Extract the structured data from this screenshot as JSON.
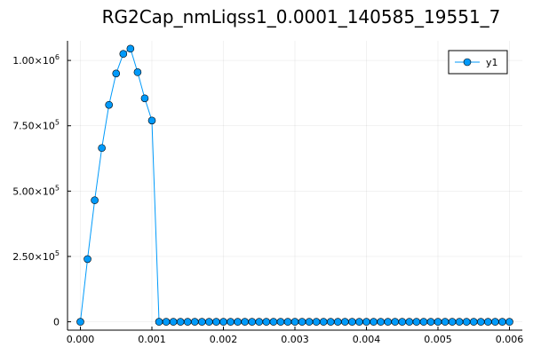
{
  "chart_data": {
    "type": "scatter",
    "title": "RG2Cap_nmLiqss1_0.0001_140585_19551_7",
    "xlabel": "",
    "ylabel": "",
    "grid": true,
    "legend_position": "top-right",
    "xlim": [
      -0.00018,
      0.00618
    ],
    "ylim": [
      -32000,
      1075000
    ],
    "x_ticks": [
      {
        "value": 0.0,
        "label": "0.000"
      },
      {
        "value": 0.001,
        "label": "0.001"
      },
      {
        "value": 0.002,
        "label": "0.002"
      },
      {
        "value": 0.003,
        "label": "0.003"
      },
      {
        "value": 0.004,
        "label": "0.004"
      },
      {
        "value": 0.005,
        "label": "0.005"
      },
      {
        "value": 0.006,
        "label": "0.006"
      }
    ],
    "y_ticks": [
      {
        "value": 0,
        "mantissa": "0",
        "exponent": ""
      },
      {
        "value": 250000,
        "mantissa": "2.50×10",
        "exponent": "5"
      },
      {
        "value": 500000,
        "mantissa": "5.00×10",
        "exponent": "5"
      },
      {
        "value": 750000,
        "mantissa": "7.50×10",
        "exponent": "5"
      },
      {
        "value": 1000000,
        "mantissa": "1.00×10",
        "exponent": "6"
      }
    ],
    "series": [
      {
        "name": "y1",
        "color": "#009AFA",
        "marker": "circle",
        "x": [
          0.0,
          0.0001,
          0.0002,
          0.0003,
          0.0004,
          0.0005,
          0.0006,
          0.0007,
          0.0008,
          0.0009,
          0.001,
          0.0011,
          0.0012,
          0.0013,
          0.0014,
          0.0015,
          0.0016,
          0.0017,
          0.0018,
          0.0019,
          0.002,
          0.0021,
          0.0022,
          0.0023,
          0.0024,
          0.0025,
          0.0026,
          0.0027,
          0.0028,
          0.0029,
          0.003,
          0.0031,
          0.0032,
          0.0033,
          0.0034,
          0.0035,
          0.0036,
          0.0037,
          0.0038,
          0.0039,
          0.004,
          0.0041,
          0.0042,
          0.0043,
          0.0044,
          0.0045,
          0.0046,
          0.0047,
          0.0048,
          0.0049,
          0.005,
          0.0051,
          0.0052,
          0.0053,
          0.0054,
          0.0055,
          0.0056,
          0.0057,
          0.0058,
          0.0059,
          0.006
        ],
        "y": [
          0,
          240000,
          465000,
          665000,
          830000,
          950000,
          1025000,
          1045000,
          955000,
          855000,
          770000,
          0,
          0,
          0,
          0,
          0,
          0,
          0,
          0,
          0,
          0,
          0,
          0,
          0,
          0,
          0,
          0,
          0,
          0,
          0,
          0,
          0,
          0,
          0,
          0,
          0,
          0,
          0,
          0,
          0,
          0,
          0,
          0,
          0,
          0,
          0,
          0,
          0,
          0,
          0,
          0,
          0,
          0,
          0,
          0,
          0,
          0,
          0,
          0,
          0,
          0
        ]
      }
    ]
  }
}
